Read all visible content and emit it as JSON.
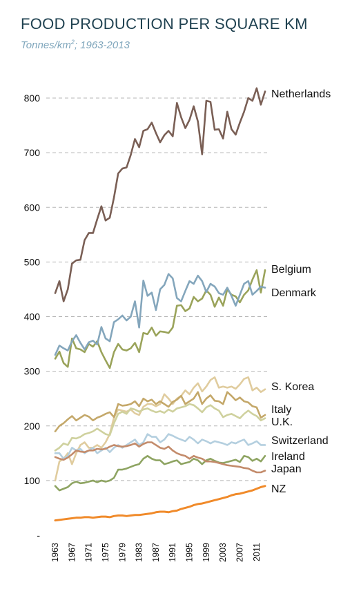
{
  "title": "FOOD PRODUCTION PER SQUARE KM",
  "subtitle_main": "Tonnes/km",
  "subtitle_sup": "2",
  "subtitle_rest": "; 1963-2013",
  "chart_data": {
    "type": "line",
    "title": "FOOD PRODUCTION PER SQUARE KM",
    "subtitle": "Tonnes/km2; 1963-2013",
    "xlabel": "",
    "ylabel": "",
    "xlim": [
      1963,
      2013
    ],
    "ylim": [
      0,
      850
    ],
    "yticks": [
      {
        "value": 800,
        "label": "800"
      },
      {
        "value": 700,
        "label": "700"
      },
      {
        "value": 600,
        "label": "600"
      },
      {
        "value": 500,
        "label": "500"
      },
      {
        "value": 400,
        "label": "400"
      },
      {
        "value": 300,
        "label": "300"
      },
      {
        "value": 200,
        "label": "200"
      },
      {
        "value": 100,
        "label": "100"
      },
      {
        "value": 0,
        "label": "-"
      }
    ],
    "xticks": [
      1963,
      1967,
      1971,
      1975,
      1979,
      1983,
      1987,
      1991,
      1995,
      1999,
      2003,
      2007,
      2011
    ],
    "grid": "horizontal dashed",
    "legend": "labels at line ends",
    "series": [
      {
        "name": "Netherlands",
        "color": "#7a5f55",
        "values": [
          443,
          465,
          428,
          450,
          497,
          503,
          504,
          540,
          553,
          553,
          578,
          602,
          576,
          581,
          618,
          662,
          671,
          673,
          696,
          725,
          710,
          740,
          743,
          755,
          736,
          719,
          732,
          740,
          730,
          791,
          765,
          745,
          760,
          785,
          757,
          697,
          795,
          793,
          742,
          743,
          726,
          775,
          743,
          733,
          755,
          775,
          800,
          795,
          818,
          788,
          812
        ]
      },
      {
        "name": "Belgium",
        "color": "#9aa35a",
        "values": [
          323,
          336,
          315,
          308,
          360,
          342,
          340,
          335,
          350,
          345,
          355,
          335,
          320,
          306,
          335,
          350,
          340,
          338,
          342,
          352,
          335,
          370,
          368,
          380,
          365,
          373,
          372,
          370,
          380,
          420,
          421,
          410,
          415,
          436,
          428,
          433,
          448,
          440,
          418,
          435,
          420,
          450,
          440,
          437,
          426,
          440,
          448,
          468,
          485,
          444,
          485
        ]
      },
      {
        "name": "Denmark",
        "color": "#84a6bc",
        "values": [
          330,
          347,
          342,
          338,
          355,
          366,
          352,
          340,
          353,
          356,
          349,
          381,
          360,
          355,
          390,
          395,
          402,
          393,
          400,
          428,
          380,
          466,
          438,
          444,
          412,
          450,
          458,
          478,
          470,
          434,
          428,
          447,
          465,
          460,
          475,
          465,
          445,
          460,
          455,
          443,
          440,
          453,
          438,
          420,
          440,
          460,
          465,
          440,
          447,
          455,
          453
        ]
      },
      {
        "name": "S. Korea",
        "color": "#e0cc9e",
        "values": [
          100,
          135,
          140,
          150,
          130,
          150,
          165,
          170,
          160,
          160,
          165,
          160,
          170,
          185,
          215,
          230,
          228,
          226,
          230,
          223,
          220,
          235,
          240,
          240,
          236,
          240,
          258,
          250,
          240,
          250,
          255,
          265,
          258,
          270,
          278,
          263,
          272,
          284,
          289,
          270,
          272,
          270,
          272,
          268,
          276,
          286,
          289,
          265,
          270,
          262,
          267
        ]
      },
      {
        "name": "Italy",
        "color": "#c4a86a",
        "values": [
          190,
          200,
          205,
          212,
          218,
          210,
          215,
          220,
          217,
          210,
          215,
          218,
          222,
          225,
          216,
          240,
          237,
          238,
          240,
          245,
          236,
          250,
          245,
          248,
          240,
          245,
          240,
          235,
          244,
          248,
          255,
          240,
          245,
          250,
          262,
          240,
          250,
          256,
          246,
          245,
          240,
          262,
          255,
          247,
          252,
          245,
          243,
          236,
          234,
          215,
          220
        ]
      },
      {
        "name": "U.K.",
        "color": "#cfd19e",
        "values": [
          155,
          160,
          168,
          165,
          178,
          177,
          180,
          185,
          187,
          190,
          195,
          190,
          185,
          183,
          205,
          222,
          226,
          222,
          232,
          230,
          226,
          230,
          232,
          228,
          225,
          227,
          224,
          230,
          226,
          232,
          234,
          236,
          240,
          238,
          232,
          225,
          234,
          238,
          232,
          228,
          216,
          220,
          222,
          218,
          214,
          222,
          228,
          222,
          218,
          210,
          214
        ]
      },
      {
        "name": "Switzerland",
        "color": "#b4cfdf",
        "values": [
          150,
          150,
          140,
          145,
          160,
          155,
          158,
          150,
          155,
          160,
          150,
          155,
          160,
          152,
          160,
          165,
          160,
          165,
          170,
          175,
          165,
          170,
          185,
          180,
          180,
          170,
          175,
          185,
          182,
          178,
          175,
          172,
          180,
          175,
          168,
          175,
          172,
          168,
          172,
          170,
          168,
          165,
          170,
          168,
          172,
          175,
          165,
          168,
          172,
          165,
          165
        ]
      },
      {
        "name": "Ireland",
        "color": "#8ea462",
        "values": [
          90,
          82,
          85,
          88,
          95,
          98,
          95,
          96,
          98,
          100,
          97,
          100,
          98,
          100,
          105,
          120,
          120,
          122,
          125,
          128,
          130,
          140,
          145,
          140,
          137,
          137,
          130,
          132,
          135,
          137,
          130,
          132,
          134,
          140,
          137,
          130,
          137,
          140,
          136,
          133,
          132,
          134,
          136,
          138,
          134,
          145,
          143,
          136,
          140,
          135,
          145
        ]
      },
      {
        "name": "Japan",
        "color": "#c38b6b",
        "values": [
          143,
          140,
          138,
          142,
          148,
          155,
          153,
          152,
          155,
          155,
          158,
          157,
          158,
          162,
          165,
          163,
          162,
          163,
          165,
          168,
          162,
          167,
          170,
          170,
          165,
          160,
          158,
          162,
          155,
          150,
          147,
          145,
          140,
          145,
          142,
          140,
          135,
          135,
          134,
          132,
          130,
          128,
          127,
          126,
          125,
          123,
          122,
          118,
          115,
          115,
          118
        ]
      },
      {
        "name": "NZ",
        "color": "#f08a2a",
        "values": [
          27,
          28,
          29,
          30,
          31,
          32,
          32,
          33,
          33,
          32,
          33,
          34,
          34,
          33,
          35,
          36,
          36,
          35,
          36,
          37,
          37,
          38,
          39,
          40,
          42,
          43,
          43,
          42,
          44,
          45,
          48,
          50,
          52,
          55,
          57,
          58,
          60,
          62,
          64,
          66,
          68,
          70,
          73,
          75,
          76,
          78,
          80,
          82,
          85,
          88,
          90
        ]
      }
    ]
  }
}
